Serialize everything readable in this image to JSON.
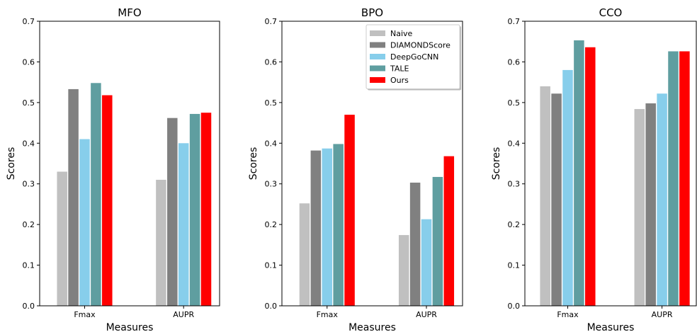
{
  "chart_data": [
    {
      "type": "bar",
      "title": "MFO",
      "xlabel": "Measures",
      "ylabel": "Scores",
      "ylim": [
        0,
        0.7
      ],
      "yticks": [
        "0.0",
        "0.1",
        "0.2",
        "0.3",
        "0.4",
        "0.5",
        "0.6",
        "0.7"
      ],
      "categories": [
        "Fmax",
        "AUPR"
      ],
      "series": [
        {
          "name": "Naive",
          "color": "#c0c0c0",
          "values": [
            0.33,
            0.31
          ]
        },
        {
          "name": "DIAMONDScore",
          "color": "#808080",
          "values": [
            0.533,
            0.462
          ]
        },
        {
          "name": "DeepGoCNN",
          "color": "#87ceeb",
          "values": [
            0.41,
            0.4
          ]
        },
        {
          "name": "TALE",
          "color": "#5f9ea0",
          "values": [
            0.548,
            0.472
          ]
        },
        {
          "name": "Ours",
          "color": "#ff0000",
          "values": [
            0.518,
            0.475
          ]
        }
      ],
      "legend": "none"
    },
    {
      "type": "bar",
      "title": "BPO",
      "xlabel": "Measures",
      "ylabel": "Scores",
      "ylim": [
        0,
        0.7
      ],
      "yticks": [
        "0.0",
        "0.1",
        "0.2",
        "0.3",
        "0.4",
        "0.5",
        "0.6",
        "0.7"
      ],
      "categories": [
        "Fmax",
        "AUPR"
      ],
      "series": [
        {
          "name": "Naive",
          "color": "#c0c0c0",
          "values": [
            0.252,
            0.174
          ]
        },
        {
          "name": "DIAMONDScore",
          "color": "#808080",
          "values": [
            0.382,
            0.303
          ]
        },
        {
          "name": "DeepGoCNN",
          "color": "#87ceeb",
          "values": [
            0.387,
            0.213
          ]
        },
        {
          "name": "TALE",
          "color": "#5f9ea0",
          "values": [
            0.398,
            0.317
          ]
        },
        {
          "name": "Ours",
          "color": "#ff0000",
          "values": [
            0.47,
            0.368
          ]
        }
      ],
      "legend": "top-right"
    },
    {
      "type": "bar",
      "title": "CCO",
      "xlabel": "Measures",
      "ylabel": "Scores",
      "ylim": [
        0,
        0.7
      ],
      "yticks": [
        "0.0",
        "0.1",
        "0.2",
        "0.3",
        "0.4",
        "0.5",
        "0.6",
        "0.7"
      ],
      "categories": [
        "Fmax",
        "AUPR"
      ],
      "series": [
        {
          "name": "Naive",
          "color": "#c0c0c0",
          "values": [
            0.54,
            0.484
          ]
        },
        {
          "name": "DIAMONDScore",
          "color": "#808080",
          "values": [
            0.522,
            0.498
          ]
        },
        {
          "name": "DeepGoCNN",
          "color": "#87ceeb",
          "values": [
            0.58,
            0.522
          ]
        },
        {
          "name": "TALE",
          "color": "#5f9ea0",
          "values": [
            0.653,
            0.626
          ]
        },
        {
          "name": "Ours",
          "color": "#ff0000",
          "values": [
            0.636,
            0.626
          ]
        }
      ],
      "legend": "none"
    }
  ]
}
